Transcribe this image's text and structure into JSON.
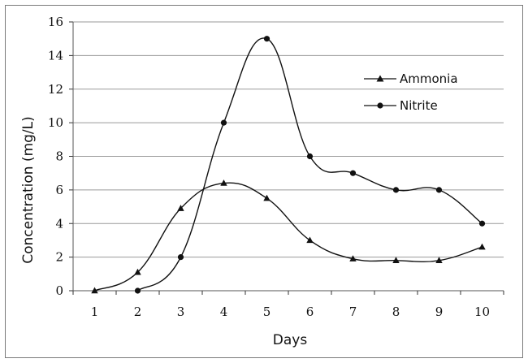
{
  "chart_data": {
    "type": "line",
    "title": "",
    "xlabel": "Days",
    "ylabel": "Concentration (mg/L)",
    "x": [
      1,
      2,
      3,
      4,
      5,
      6,
      7,
      8,
      9,
      10
    ],
    "x_tick_labels": [
      "1",
      "2",
      "3",
      "4",
      "5",
      "6",
      "7",
      "8",
      "9",
      "10"
    ],
    "y_tick_labels": [
      "0",
      "2",
      "4",
      "6",
      "8",
      "10",
      "12",
      "14",
      "16"
    ],
    "xlim": [
      0.5,
      10.5
    ],
    "ylim": [
      0,
      16
    ],
    "y_ticks": [
      0,
      2,
      4,
      6,
      8,
      10,
      12,
      14,
      16
    ],
    "grid": "horizontal",
    "legend_position": "top-right",
    "series": [
      {
        "name": "Ammonia",
        "marker": "triangle",
        "points": [
          [
            1,
            0
          ],
          [
            2,
            1.1
          ],
          [
            3,
            4.9
          ],
          [
            4,
            6.4
          ],
          [
            5,
            5.5
          ],
          [
            6,
            3.0
          ],
          [
            7,
            1.9
          ],
          [
            8,
            1.8
          ],
          [
            9,
            1.8
          ],
          [
            10,
            2.6
          ]
        ]
      },
      {
        "name": "Nitrite",
        "marker": "circle",
        "points": [
          [
            2,
            0
          ],
          [
            3,
            2.0
          ],
          [
            4,
            10.0
          ],
          [
            5,
            15.0
          ],
          [
            6,
            8.0
          ],
          [
            7,
            7.0
          ],
          [
            8,
            6.0
          ],
          [
            9,
            6.0
          ],
          [
            10,
            4.0
          ]
        ]
      }
    ]
  }
}
